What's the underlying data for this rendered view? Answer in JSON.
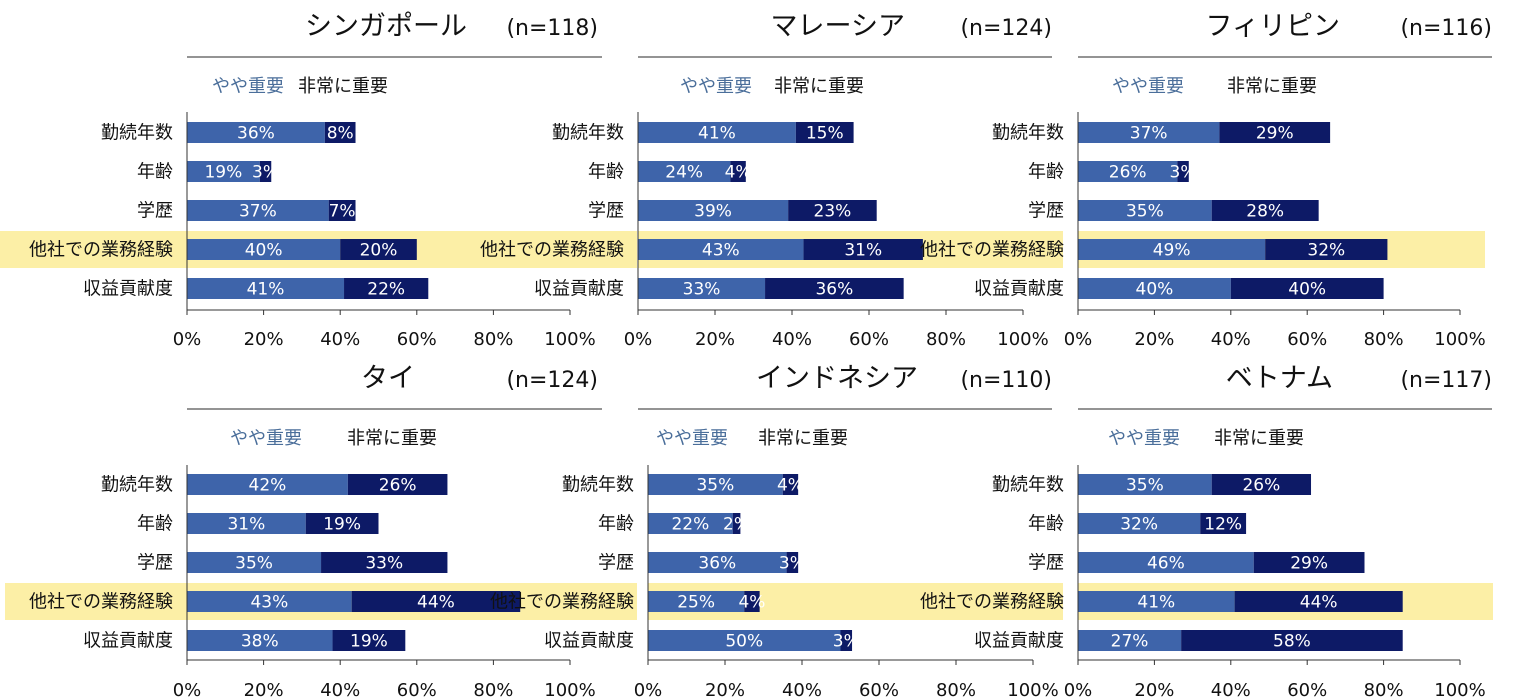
{
  "chart_data": [
    {
      "type": "bar",
      "stacked": true,
      "orientation": "horizontal",
      "title": "シンガポール",
      "n_label": "(n=118)",
      "categories": [
        "勤続年数",
        "年齢",
        "学歴",
        "他社での業務経験",
        "収益貢献度"
      ],
      "highlight_category": "他社での業務経験",
      "series": [
        {
          "name": "やや重要",
          "color": "#3E64AA",
          "values": [
            36,
            19,
            37,
            40,
            41
          ],
          "labels": [
            "36%",
            "19%",
            "37%",
            "40%",
            "41%"
          ]
        },
        {
          "name": "非常に重要",
          "color": "#0D1A66",
          "values": [
            8,
            3,
            7,
            20,
            22
          ],
          "labels": [
            "8%",
            "3%",
            "7%",
            "20%",
            "22%"
          ]
        }
      ],
      "xlim": [
        0,
        100
      ],
      "xticks": [
        "0%",
        "20%",
        "40%",
        "60%",
        "80%",
        "100%"
      ]
    },
    {
      "type": "bar",
      "stacked": true,
      "orientation": "horizontal",
      "title": "マレーシア",
      "n_label": "(n=124)",
      "categories": [
        "勤続年数",
        "年齢",
        "学歴",
        "他社での業務経験",
        "収益貢献度"
      ],
      "highlight_category": "他社での業務経験",
      "series": [
        {
          "name": "やや重要",
          "color": "#3E64AA",
          "values": [
            41,
            24,
            39,
            43,
            33
          ],
          "labels": [
            "41%",
            "24%",
            "39%",
            "43%",
            "33%"
          ]
        },
        {
          "name": "非常に重要",
          "color": "#0D1A66",
          "values": [
            15,
            4,
            23,
            31,
            36
          ],
          "labels": [
            "15%",
            "4%",
            "23%",
            "31%",
            "36%"
          ]
        }
      ],
      "xlim": [
        0,
        100
      ],
      "xticks": [
        "0%",
        "20%",
        "40%",
        "60%",
        "80%",
        "100%"
      ]
    },
    {
      "type": "bar",
      "stacked": true,
      "orientation": "horizontal",
      "title": "フィリピン",
      "n_label": "(n=116)",
      "categories": [
        "勤続年数",
        "年齢",
        "学歴",
        "他社での業務経験",
        "収益貢献度"
      ],
      "highlight_category": "他社での業務経験",
      "series": [
        {
          "name": "やや重要",
          "color": "#3E64AA",
          "values": [
            37,
            26,
            35,
            49,
            40
          ],
          "labels": [
            "37%",
            "26%",
            "35%",
            "49%",
            "40%"
          ]
        },
        {
          "name": "非常に重要",
          "color": "#0D1A66",
          "values": [
            29,
            3,
            28,
            32,
            40
          ],
          "labels": [
            "29%",
            "3%",
            "28%",
            "32%",
            "40%"
          ]
        }
      ],
      "xlim": [
        0,
        100
      ],
      "xticks": [
        "0%",
        "20%",
        "40%",
        "60%",
        "80%",
        "100%"
      ]
    },
    {
      "type": "bar",
      "stacked": true,
      "orientation": "horizontal",
      "title": "タイ",
      "n_label": "(n=124)",
      "categories": [
        "勤続年数",
        "年齢",
        "学歴",
        "他社での業務経験",
        "収益貢献度"
      ],
      "highlight_category": "他社での業務経験",
      "series": [
        {
          "name": "やや重要",
          "color": "#3E64AA",
          "values": [
            42,
            31,
            35,
            43,
            38
          ],
          "labels": [
            "42%",
            "31%",
            "35%",
            "43%",
            "38%"
          ]
        },
        {
          "name": "非常に重要",
          "color": "#0D1A66",
          "values": [
            26,
            19,
            33,
            44,
            19
          ],
          "labels": [
            "26%",
            "19%",
            "33%",
            "44%",
            "19%"
          ]
        }
      ],
      "xlim": [
        0,
        100
      ],
      "xticks": [
        "0%",
        "20%",
        "40%",
        "60%",
        "80%",
        "100%"
      ]
    },
    {
      "type": "bar",
      "stacked": true,
      "orientation": "horizontal",
      "title": "インドネシア",
      "n_label": "(n=110)",
      "categories": [
        "勤続年数",
        "年齢",
        "学歴",
        "他社での業務経験",
        "収益貢献度"
      ],
      "highlight_category": "他社での業務経験",
      "series": [
        {
          "name": "やや重要",
          "color": "#3E64AA",
          "values": [
            35,
            22,
            36,
            25,
            50
          ],
          "labels": [
            "35%",
            "22%",
            "36%",
            "25%",
            "50%"
          ]
        },
        {
          "name": "非常に重要",
          "color": "#0D1A66",
          "values": [
            4,
            2,
            3,
            4,
            3
          ],
          "labels": [
            "4%",
            "2%",
            "3%",
            "4%",
            "3%"
          ]
        }
      ],
      "xlim": [
        0,
        100
      ],
      "xticks": [
        "0%",
        "20%",
        "40%",
        "60%",
        "80%",
        "100%"
      ]
    },
    {
      "type": "bar",
      "stacked": true,
      "orientation": "horizontal",
      "title": "ベトナム",
      "n_label": "(n=117)",
      "categories": [
        "勤続年数",
        "年齢",
        "学歴",
        "他社での業務経験",
        "収益貢献度"
      ],
      "highlight_category": "他社での業務経験",
      "series": [
        {
          "name": "やや重要",
          "color": "#3E64AA",
          "values": [
            35,
            32,
            46,
            41,
            27
          ],
          "labels": [
            "35%",
            "32%",
            "46%",
            "41%",
            "27%"
          ]
        },
        {
          "name": "非常に重要",
          "color": "#0D1A66",
          "values": [
            26,
            12,
            29,
            44,
            58
          ],
          "labels": [
            "26%",
            "12%",
            "29%",
            "44%",
            "58%"
          ]
        }
      ],
      "xlim": [
        0,
        100
      ],
      "xticks": [
        "0%",
        "20%",
        "40%",
        "60%",
        "80%",
        "100%"
      ]
    }
  ],
  "colors": {
    "legend_light": "#4A6E9A",
    "legend_dark": "#111111",
    "highlight": "#FCEFA6"
  }
}
